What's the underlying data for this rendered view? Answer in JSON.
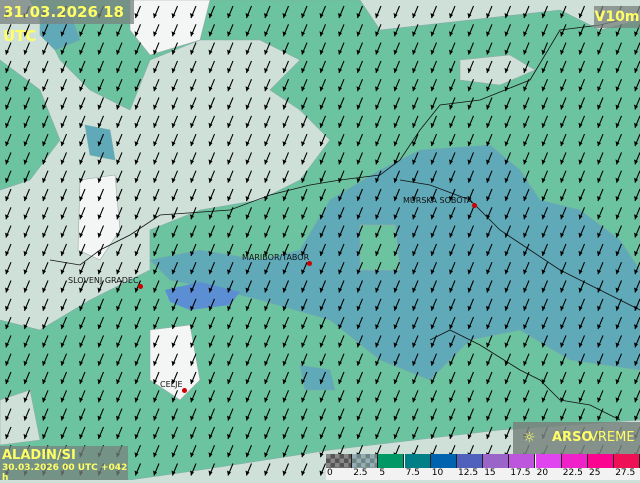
{
  "header": {
    "valid_time": "31.03.2026 18 UTC",
    "variable": "V10m"
  },
  "footer": {
    "model": "ALADIN/SI",
    "run": "30.03.2026 00 UTC +042 h"
  },
  "brand": {
    "icon": "weather-sun-icon",
    "bold": "ARSO",
    "light": "VREME"
  },
  "cities": [
    {
      "name": "MURSKA SOBOTA"
    },
    {
      "name": "MARIBOR/TABOR"
    },
    {
      "name": "SLOVENJ GRADEC"
    },
    {
      "name": "CELJE"
    }
  ],
  "legend": {
    "unit_ticks": [
      "0",
      "2.5",
      "5",
      "7.5",
      "10",
      "12.5",
      "15",
      "17.5",
      "20",
      "22.5",
      "25",
      "27.5"
    ],
    "colors": [
      "checker-dark",
      "checker-light",
      "#009966",
      "#007f86",
      "#0063b0",
      "#4f60bd",
      "#9b64c9",
      "#bd55dd",
      "#e044ee",
      "#ee22c8",
      "#fb0590",
      "#ee1155"
    ]
  },
  "wind_direction": "from north-east"
}
